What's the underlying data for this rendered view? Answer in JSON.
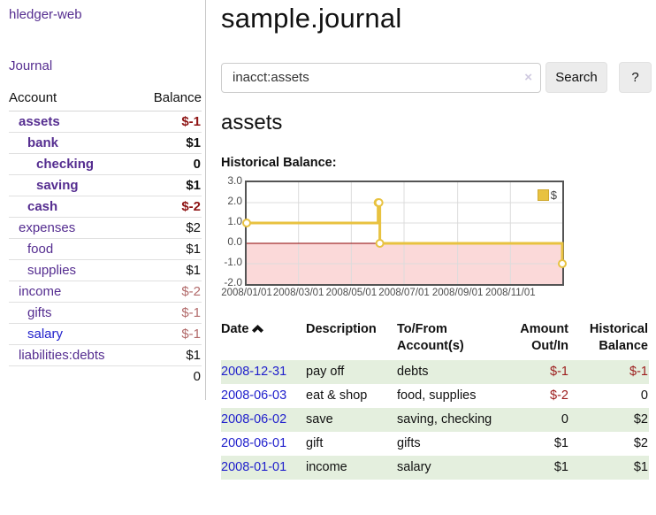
{
  "app": {
    "title": "hledger-web",
    "nav_journal": "Journal"
  },
  "sidebar": {
    "columns": {
      "account": "Account",
      "balance": "Balance"
    },
    "accounts": [
      {
        "name": "assets",
        "level": 0,
        "bold": true,
        "link": "purple",
        "balance": "$-1",
        "balance_style": "neg-strong"
      },
      {
        "name": "bank",
        "level": 1,
        "bold": true,
        "link": "purple",
        "balance": "$1",
        "balance_style": "pos"
      },
      {
        "name": "checking",
        "level": 2,
        "bold": true,
        "link": "purple",
        "balance": "0",
        "balance_style": "pos"
      },
      {
        "name": "saving",
        "level": 2,
        "bold": true,
        "link": "purple",
        "balance": "$1",
        "balance_style": "pos"
      },
      {
        "name": "cash",
        "level": 1,
        "bold": true,
        "link": "purple",
        "balance": "$-2",
        "balance_style": "neg-strong"
      },
      {
        "name": "expenses",
        "level": 0,
        "bold": false,
        "link": "purple",
        "balance": "$2",
        "balance_style": "pos"
      },
      {
        "name": "food",
        "level": 1,
        "bold": false,
        "link": "purple",
        "balance": "$1",
        "balance_style": "pos"
      },
      {
        "name": "supplies",
        "level": 1,
        "bold": false,
        "link": "purple",
        "balance": "$1",
        "balance_style": "pos"
      },
      {
        "name": "income",
        "level": 0,
        "bold": false,
        "link": "purple",
        "balance": "$-2",
        "balance_style": "neg-soft"
      },
      {
        "name": "gifts",
        "level": 1,
        "bold": false,
        "link": "purple",
        "balance": "$-1",
        "balance_style": "neg-soft"
      },
      {
        "name": "salary",
        "level": 1,
        "bold": false,
        "link": "blue",
        "balance": "$-1",
        "balance_style": "neg-soft"
      },
      {
        "name": "liabilities:debts",
        "level": 0,
        "bold": false,
        "link": "purple",
        "balance": "$1",
        "balance_style": "pos"
      }
    ],
    "total": "0"
  },
  "header": {
    "title": "sample.journal"
  },
  "search": {
    "value": "inacct:assets",
    "clear_icon": "×",
    "button": "Search",
    "help_button": "?"
  },
  "register": {
    "heading": "assets",
    "chart_label": "Historical Balance:"
  },
  "chart_data": {
    "type": "line",
    "step": true,
    "title": "Historical Balance:",
    "legend": "$",
    "series": [
      {
        "name": "$",
        "points": [
          [
            "2008-01-01",
            1
          ],
          [
            "2008-06-01",
            2
          ],
          [
            "2008-06-02",
            2
          ],
          [
            "2008-06-03",
            0
          ],
          [
            "2008-12-31",
            -1
          ]
        ]
      }
    ],
    "x_ticks": [
      "2008/01/01",
      "2008/03/01",
      "2008/05/01",
      "2008/07/01",
      "2008/09/01",
      "2008/11/01"
    ],
    "y_ticks": [
      "3.0",
      "2.0",
      "1.0",
      "0.0",
      "-1.0",
      "-2.0"
    ],
    "xlim": [
      "2008-01-01",
      "2008-12-31"
    ],
    "ylim": [
      -2,
      3
    ],
    "grid": true,
    "legend_position": "top-right",
    "colors": {
      "line": "#e8c240",
      "marker_fill": "#ffffff",
      "negative_region": "#fbd9d9",
      "zero_line": "#8b0000",
      "gridline": "#dcdcdc",
      "plot_border": "#545454"
    }
  },
  "register_table": {
    "headers": {
      "date": "Date",
      "sort_icon": "sort-ascending",
      "description": "Description",
      "accounts_line1": "To/From",
      "accounts_line2": "Account(s)",
      "amount_line1": "Amount",
      "amount_line2": "Out/In",
      "balance_line1": "Historical",
      "balance_line2": "Balance"
    },
    "rows": [
      {
        "date": "2008-12-31",
        "description": "pay off",
        "accounts": "debts",
        "amount": "$-1",
        "amount_neg": true,
        "balance": "$-1",
        "balance_neg": true,
        "stripe": true
      },
      {
        "date": "2008-06-03",
        "description": "eat & shop",
        "accounts": "food, supplies",
        "amount": "$-2",
        "amount_neg": true,
        "balance": "0",
        "balance_neg": false,
        "stripe": false
      },
      {
        "date": "2008-06-02",
        "description": "save",
        "accounts": "saving, checking",
        "amount": "0",
        "amount_neg": false,
        "balance": "$2",
        "balance_neg": false,
        "stripe": true
      },
      {
        "date": "2008-06-01",
        "description": "gift",
        "accounts": "gifts",
        "amount": "$1",
        "amount_neg": false,
        "balance": "$2",
        "balance_neg": false,
        "stripe": false
      },
      {
        "date": "2008-01-01",
        "description": "income",
        "accounts": "salary",
        "amount": "$1",
        "amount_neg": false,
        "balance": "$1",
        "balance_neg": false,
        "stripe": true
      }
    ]
  }
}
